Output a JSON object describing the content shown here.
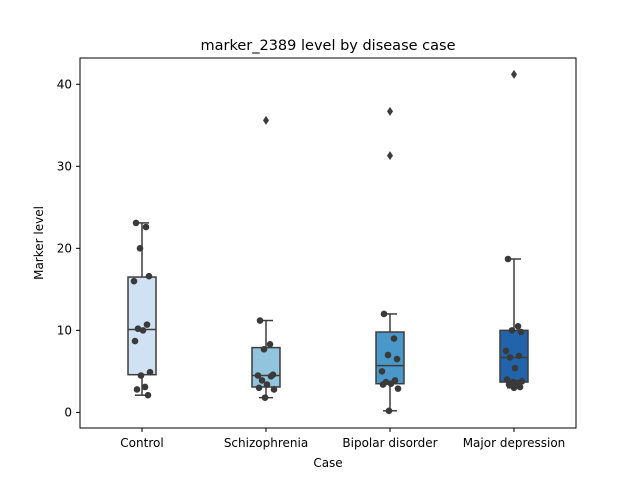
{
  "chart_data": {
    "type": "box",
    "title": "marker_2389 level by disease case",
    "xlabel": "Case",
    "ylabel": "Marker level",
    "ylim": [
      -1.9,
      43.2
    ],
    "yticks": [
      0,
      10,
      20,
      30,
      40
    ],
    "grid": false,
    "categories": [
      "Control",
      "Schizophrenia",
      "Bipolar disorder",
      "Major depression"
    ],
    "colors": [
      "#cfe1f2",
      "#93c4de",
      "#4a98c9",
      "#2164ab"
    ],
    "boxes": [
      {
        "category": "Control",
        "whisker_low": 2.1,
        "q1": 4.6,
        "median": 10.1,
        "q3": 16.5,
        "whisker_high": 23.1,
        "outliers": []
      },
      {
        "category": "Schizophrenia",
        "whisker_low": 1.8,
        "q1": 3.1,
        "median": 4.5,
        "q3": 7.9,
        "whisker_high": 11.2,
        "outliers": [
          35.6
        ]
      },
      {
        "category": "Bipolar disorder",
        "whisker_low": 0.2,
        "q1": 3.5,
        "median": 5.7,
        "q3": 9.8,
        "whisker_high": 12.0,
        "outliers": [
          31.3,
          36.7
        ]
      },
      {
        "category": "Major depression",
        "whisker_low": 3.0,
        "q1": 3.7,
        "median": 6.7,
        "q3": 10.0,
        "whisker_high": 18.7,
        "outliers": [
          41.2
        ]
      }
    ],
    "points": [
      {
        "category": "Control",
        "values": [
          23.1,
          22.6,
          20.0,
          16.6,
          16.0,
          10.7,
          10.2,
          10.0,
          8.7,
          4.9,
          4.5,
          3.1,
          2.8,
          2.1
        ]
      },
      {
        "category": "Schizophrenia",
        "values": [
          11.2,
          8.3,
          7.7,
          4.6,
          4.5,
          4.4,
          3.9,
          3.4,
          3.0,
          2.8,
          1.8
        ]
      },
      {
        "category": "Bipolar disorder",
        "values": [
          12.0,
          9.0,
          7.0,
          6.5,
          5.0,
          3.9,
          3.7,
          3.5,
          3.4,
          2.9,
          0.2
        ]
      },
      {
        "category": "Major depression",
        "values": [
          18.7,
          10.5,
          10.0,
          9.8,
          7.5,
          6.9,
          6.7,
          5.4,
          4.0,
          3.8,
          3.7,
          3.6,
          3.4,
          3.1,
          3.0
        ]
      }
    ]
  }
}
